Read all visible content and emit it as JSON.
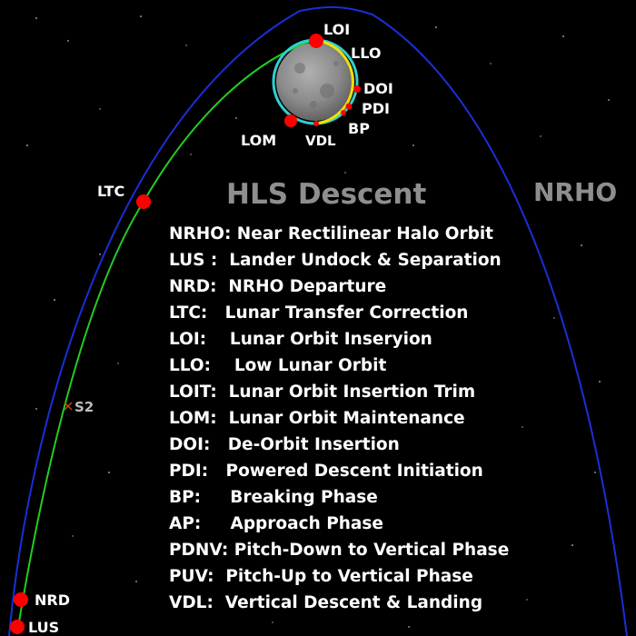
{
  "title": "HLS Descent",
  "orbit_label": "NRHO",
  "waypoints": {
    "loi": "LOI",
    "llo": "LLO",
    "doi": "DOI",
    "pdi": "PDI",
    "bp": "BP",
    "lom": "LOM",
    "vdl": "VDL",
    "ltc": "LTC",
    "s2": "S2",
    "nrd": "NRD",
    "lus": "LUS"
  },
  "legend": [
    {
      "abbr": "NRHO:",
      "desc": "Near Rectilinear Halo Orbit"
    },
    {
      "abbr": "LUS :",
      "desc": "Lander Undock & Separation"
    },
    {
      "abbr": "NRD:",
      "desc": "NRHO Departure"
    },
    {
      "abbr": "LTC:",
      "desc": "Lunar Transfer Correction"
    },
    {
      "abbr": "LOI:",
      "desc": "Lunar Orbit Inseryion"
    },
    {
      "abbr": "LLO:",
      "desc": "Low Lunar Orbit"
    },
    {
      "abbr": "LOIT:",
      "desc": "Lunar Orbit Insertion Trim"
    },
    {
      "abbr": "LOM:",
      "desc": "Lunar Orbit Maintenance"
    },
    {
      "abbr": "DOI:",
      "desc": "De-Orbit Insertion"
    },
    {
      "abbr": "PDI:",
      "desc": "Powered Descent Initiation"
    },
    {
      "abbr": "BP:",
      "desc": "Breaking Phase"
    },
    {
      "abbr": "AP:",
      "desc": "Approach Phase"
    },
    {
      "abbr": "PDNV:",
      "desc": "Pitch-Down to Vertical Phase"
    },
    {
      "abbr": "PUV:",
      "desc": "Pitch-Up to Vertical Phase"
    },
    {
      "abbr": "VDL:",
      "desc": "Vertical Descent & Landing"
    }
  ],
  "colors": {
    "background": "#000000",
    "nrho_orbit": "#1a2fd6",
    "transfer_path": "#22cc22",
    "llo_orbit": "#30d0d0",
    "descent_arc": "#f0e000",
    "waypoint_marker": "#ff0000",
    "moon": "#8c8c8c"
  }
}
